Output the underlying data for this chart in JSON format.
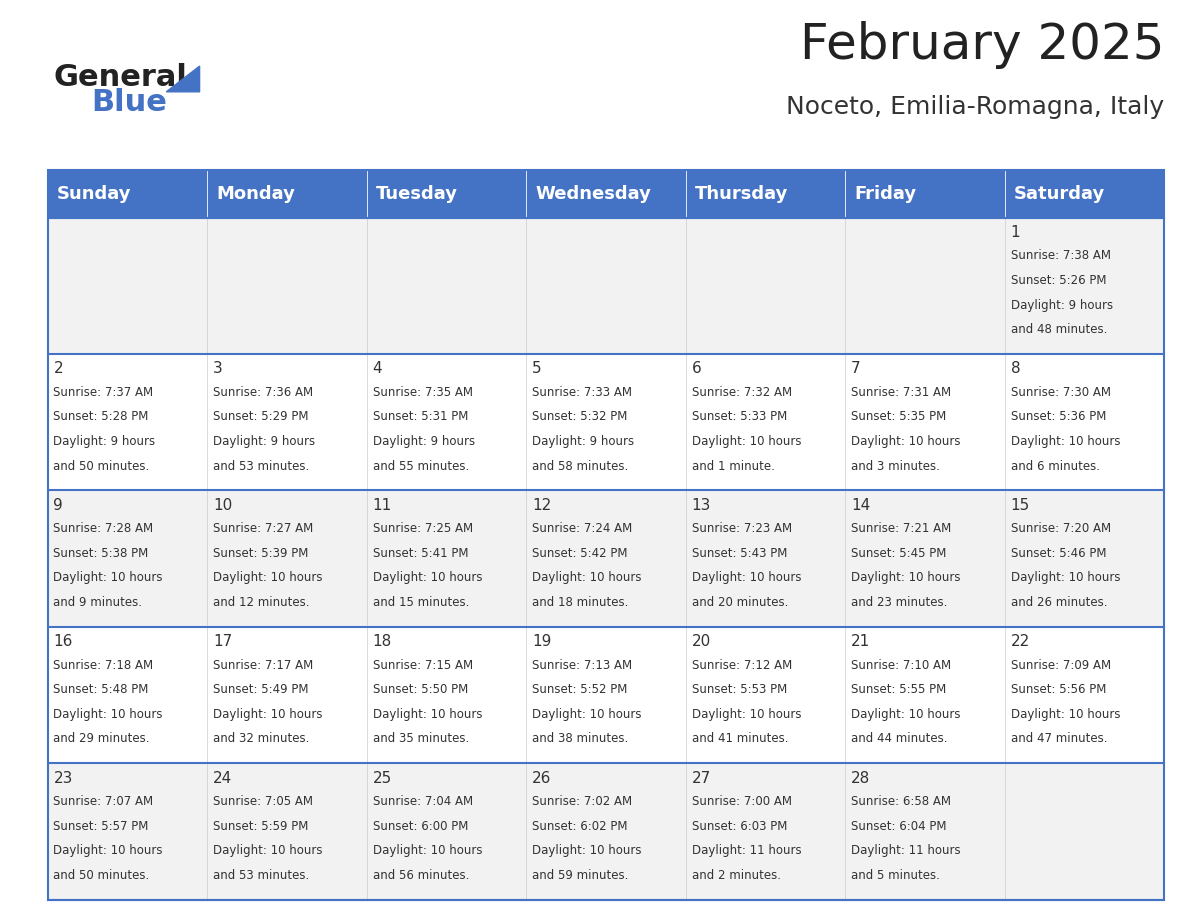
{
  "title": "February 2025",
  "subtitle": "Noceto, Emilia-Romagna, Italy",
  "header_bg": "#4472C4",
  "header_text": "#FFFFFF",
  "cell_bg_odd": "#F2F2F2",
  "cell_bg_even": "#FFFFFF",
  "cell_border": "#4472C4",
  "day_headers": [
    "Sunday",
    "Monday",
    "Tuesday",
    "Wednesday",
    "Thursday",
    "Friday",
    "Saturday"
  ],
  "days": [
    {
      "day": 1,
      "col": 6,
      "row": 0,
      "sunrise": "7:38 AM",
      "sunset": "5:26 PM",
      "daylight": "9 hours and 48 minutes"
    },
    {
      "day": 2,
      "col": 0,
      "row": 1,
      "sunrise": "7:37 AM",
      "sunset": "5:28 PM",
      "daylight": "9 hours and 50 minutes"
    },
    {
      "day": 3,
      "col": 1,
      "row": 1,
      "sunrise": "7:36 AM",
      "sunset": "5:29 PM",
      "daylight": "9 hours and 53 minutes"
    },
    {
      "day": 4,
      "col": 2,
      "row": 1,
      "sunrise": "7:35 AM",
      "sunset": "5:31 PM",
      "daylight": "9 hours and 55 minutes"
    },
    {
      "day": 5,
      "col": 3,
      "row": 1,
      "sunrise": "7:33 AM",
      "sunset": "5:32 PM",
      "daylight": "9 hours and 58 minutes"
    },
    {
      "day": 6,
      "col": 4,
      "row": 1,
      "sunrise": "7:32 AM",
      "sunset": "5:33 PM",
      "daylight": "10 hours and 1 minute"
    },
    {
      "day": 7,
      "col": 5,
      "row": 1,
      "sunrise": "7:31 AM",
      "sunset": "5:35 PM",
      "daylight": "10 hours and 3 minutes"
    },
    {
      "day": 8,
      "col": 6,
      "row": 1,
      "sunrise": "7:30 AM",
      "sunset": "5:36 PM",
      "daylight": "10 hours and 6 minutes"
    },
    {
      "day": 9,
      "col": 0,
      "row": 2,
      "sunrise": "7:28 AM",
      "sunset": "5:38 PM",
      "daylight": "10 hours and 9 minutes"
    },
    {
      "day": 10,
      "col": 1,
      "row": 2,
      "sunrise": "7:27 AM",
      "sunset": "5:39 PM",
      "daylight": "10 hours and 12 minutes"
    },
    {
      "day": 11,
      "col": 2,
      "row": 2,
      "sunrise": "7:25 AM",
      "sunset": "5:41 PM",
      "daylight": "10 hours and 15 minutes"
    },
    {
      "day": 12,
      "col": 3,
      "row": 2,
      "sunrise": "7:24 AM",
      "sunset": "5:42 PM",
      "daylight": "10 hours and 18 minutes"
    },
    {
      "day": 13,
      "col": 4,
      "row": 2,
      "sunrise": "7:23 AM",
      "sunset": "5:43 PM",
      "daylight": "10 hours and 20 minutes"
    },
    {
      "day": 14,
      "col": 5,
      "row": 2,
      "sunrise": "7:21 AM",
      "sunset": "5:45 PM",
      "daylight": "10 hours and 23 minutes"
    },
    {
      "day": 15,
      "col": 6,
      "row": 2,
      "sunrise": "7:20 AM",
      "sunset": "5:46 PM",
      "daylight": "10 hours and 26 minutes"
    },
    {
      "day": 16,
      "col": 0,
      "row": 3,
      "sunrise": "7:18 AM",
      "sunset": "5:48 PM",
      "daylight": "10 hours and 29 minutes"
    },
    {
      "day": 17,
      "col": 1,
      "row": 3,
      "sunrise": "7:17 AM",
      "sunset": "5:49 PM",
      "daylight": "10 hours and 32 minutes"
    },
    {
      "day": 18,
      "col": 2,
      "row": 3,
      "sunrise": "7:15 AM",
      "sunset": "5:50 PM",
      "daylight": "10 hours and 35 minutes"
    },
    {
      "day": 19,
      "col": 3,
      "row": 3,
      "sunrise": "7:13 AM",
      "sunset": "5:52 PM",
      "daylight": "10 hours and 38 minutes"
    },
    {
      "day": 20,
      "col": 4,
      "row": 3,
      "sunrise": "7:12 AM",
      "sunset": "5:53 PM",
      "daylight": "10 hours and 41 minutes"
    },
    {
      "day": 21,
      "col": 5,
      "row": 3,
      "sunrise": "7:10 AM",
      "sunset": "5:55 PM",
      "daylight": "10 hours and 44 minutes"
    },
    {
      "day": 22,
      "col": 6,
      "row": 3,
      "sunrise": "7:09 AM",
      "sunset": "5:56 PM",
      "daylight": "10 hours and 47 minutes"
    },
    {
      "day": 23,
      "col": 0,
      "row": 4,
      "sunrise": "7:07 AM",
      "sunset": "5:57 PM",
      "daylight": "10 hours and 50 minutes"
    },
    {
      "day": 24,
      "col": 1,
      "row": 4,
      "sunrise": "7:05 AM",
      "sunset": "5:59 PM",
      "daylight": "10 hours and 53 minutes"
    },
    {
      "day": 25,
      "col": 2,
      "row": 4,
      "sunrise": "7:04 AM",
      "sunset": "6:00 PM",
      "daylight": "10 hours and 56 minutes"
    },
    {
      "day": 26,
      "col": 3,
      "row": 4,
      "sunrise": "7:02 AM",
      "sunset": "6:02 PM",
      "daylight": "10 hours and 59 minutes"
    },
    {
      "day": 27,
      "col": 4,
      "row": 4,
      "sunrise": "7:00 AM",
      "sunset": "6:03 PM",
      "daylight": "11 hours and 2 minutes"
    },
    {
      "day": 28,
      "col": 5,
      "row": 4,
      "sunrise": "6:58 AM",
      "sunset": "6:04 PM",
      "daylight": "11 hours and 5 minutes"
    }
  ],
  "num_rows": 5,
  "logo_text_general": "General",
  "logo_text_blue": "Blue",
  "logo_triangle_color": "#4472C4",
  "title_fontsize": 36,
  "subtitle_fontsize": 18,
  "header_fontsize": 13,
  "day_number_fontsize": 11,
  "cell_text_fontsize": 8.5,
  "text_color": "#333333",
  "border_color": "#4472C4"
}
